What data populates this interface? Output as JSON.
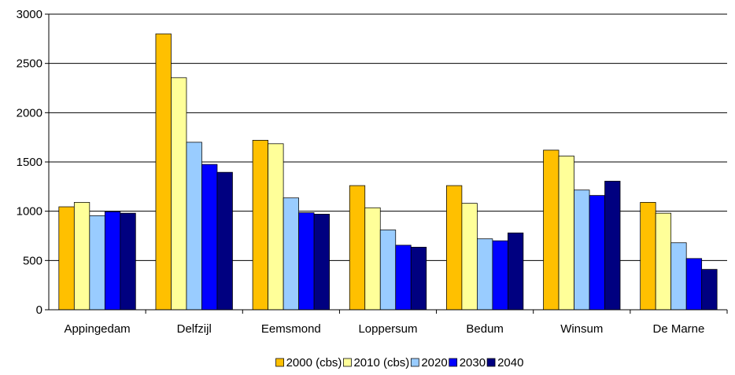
{
  "chart_data": {
    "type": "bar",
    "categories": [
      "Appingedam",
      "Delfzijl",
      "Eemsmond",
      "Loppersum",
      "Bedum",
      "Winsum",
      "De Marne"
    ],
    "series": [
      {
        "name": "2000 (cbs)",
        "color": "#FFC000",
        "values": [
          1045,
          2800,
          1720,
          1260,
          1260,
          1620,
          1090
        ]
      },
      {
        "name": "2010 (cbs)",
        "color": "#FFFF99",
        "values": [
          1090,
          2355,
          1685,
          1035,
          1080,
          1560,
          980
        ]
      },
      {
        "name": "2020",
        "color": "#99CCFF",
        "values": [
          955,
          1700,
          1135,
          810,
          720,
          1215,
          680
        ]
      },
      {
        "name": "2030",
        "color": "#0000FF",
        "values": [
          995,
          1475,
          985,
          655,
          700,
          1160,
          520
        ]
      },
      {
        "name": "2040",
        "color": "#000080",
        "values": [
          980,
          1395,
          970,
          635,
          780,
          1305,
          410
        ]
      }
    ],
    "yticks": [
      "0",
      "500",
      "1000",
      "1500",
      "2000",
      "2500",
      "3000"
    ],
    "ylim": [
      0,
      3000
    ],
    "grid": true,
    "legend_position": "bottom"
  }
}
